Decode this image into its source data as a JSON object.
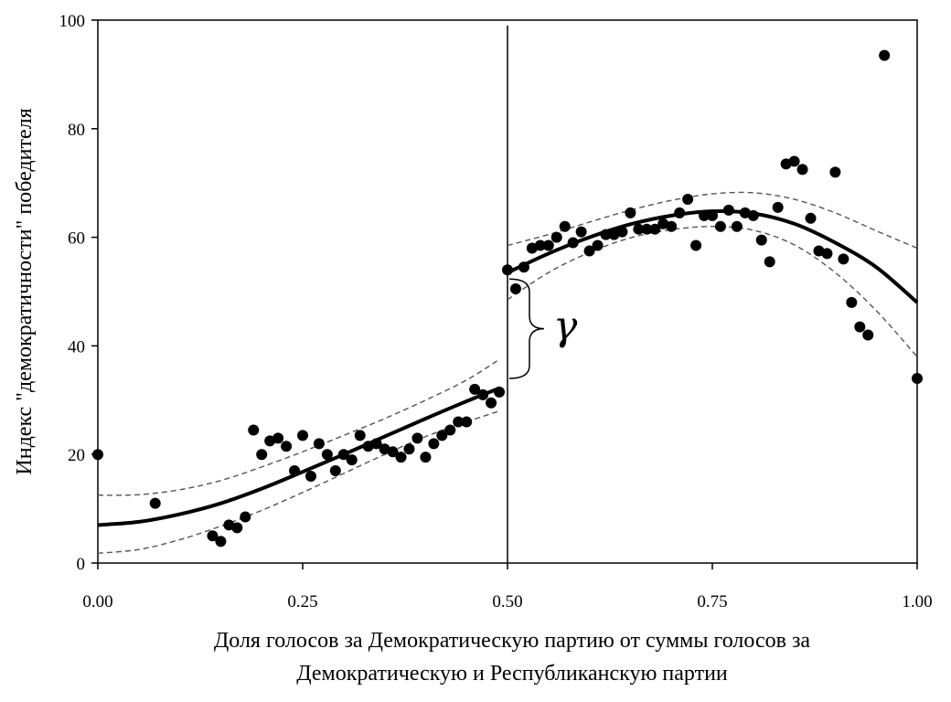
{
  "chart_data": {
    "type": "scatter",
    "title": "",
    "xlabel_lines": [
      "Доля голосов за Демократическую партию от суммы голосов за",
      "Демократическую и Республиканскую партии"
    ],
    "ylabel": "Индекс \"демократичности\" победителя",
    "xlim": [
      0,
      1
    ],
    "ylim": [
      0,
      100
    ],
    "xticks": [
      "0.00",
      "0.25",
      "0.50",
      "0.75",
      "1.00"
    ],
    "yticks": [
      "0",
      "20",
      "40",
      "60",
      "80",
      "100"
    ],
    "grid": false,
    "discontinuity_x": 0.5,
    "annotation": "γ",
    "gap": [
      34,
      54
    ],
    "points": [
      [
        0.0,
        20
      ],
      [
        0.07,
        11
      ],
      [
        0.14,
        5
      ],
      [
        0.15,
        4
      ],
      [
        0.16,
        7
      ],
      [
        0.17,
        6.5
      ],
      [
        0.18,
        8.5
      ],
      [
        0.19,
        24.5
      ],
      [
        0.2,
        20
      ],
      [
        0.21,
        22.5
      ],
      [
        0.22,
        23
      ],
      [
        0.23,
        21.5
      ],
      [
        0.24,
        17
      ],
      [
        0.25,
        23.5
      ],
      [
        0.26,
        16
      ],
      [
        0.27,
        22
      ],
      [
        0.28,
        20
      ],
      [
        0.29,
        17
      ],
      [
        0.3,
        20
      ],
      [
        0.31,
        19
      ],
      [
        0.32,
        23.5
      ],
      [
        0.33,
        21.5
      ],
      [
        0.34,
        22
      ],
      [
        0.35,
        21
      ],
      [
        0.36,
        20.5
      ],
      [
        0.37,
        19.5
      ],
      [
        0.38,
        21
      ],
      [
        0.39,
        23
      ],
      [
        0.4,
        19.5
      ],
      [
        0.41,
        22
      ],
      [
        0.42,
        23.5
      ],
      [
        0.43,
        24.5
      ],
      [
        0.44,
        26
      ],
      [
        0.45,
        26
      ],
      [
        0.46,
        32
      ],
      [
        0.47,
        31
      ],
      [
        0.48,
        29.5
      ],
      [
        0.49,
        31.5
      ],
      [
        0.5,
        54
      ],
      [
        0.51,
        50.5
      ],
      [
        0.52,
        54.5
      ],
      [
        0.53,
        58
      ],
      [
        0.54,
        58.5
      ],
      [
        0.55,
        58.5
      ],
      [
        0.56,
        60
      ],
      [
        0.57,
        62
      ],
      [
        0.58,
        59
      ],
      [
        0.59,
        61
      ],
      [
        0.6,
        57.5
      ],
      [
        0.61,
        58.5
      ],
      [
        0.62,
        60.5
      ],
      [
        0.63,
        60.5
      ],
      [
        0.64,
        61
      ],
      [
        0.65,
        64.5
      ],
      [
        0.66,
        61.5
      ],
      [
        0.67,
        61.5
      ],
      [
        0.68,
        61.5
      ],
      [
        0.69,
        62.5
      ],
      [
        0.7,
        62
      ],
      [
        0.71,
        64.5
      ],
      [
        0.72,
        67
      ],
      [
        0.73,
        58.5
      ],
      [
        0.74,
        64
      ],
      [
        0.75,
        64
      ],
      [
        0.76,
        62
      ],
      [
        0.77,
        65
      ],
      [
        0.78,
        62
      ],
      [
        0.79,
        64.5
      ],
      [
        0.8,
        64
      ],
      [
        0.81,
        59.5
      ],
      [
        0.82,
        55.5
      ],
      [
        0.83,
        65.5
      ],
      [
        0.84,
        73.5
      ],
      [
        0.85,
        74
      ],
      [
        0.86,
        72.5
      ],
      [
        0.87,
        63.5
      ],
      [
        0.88,
        57.5
      ],
      [
        0.89,
        57
      ],
      [
        0.9,
        72
      ],
      [
        0.91,
        56
      ],
      [
        0.92,
        48
      ],
      [
        0.93,
        43.5
      ],
      [
        0.94,
        42
      ],
      [
        0.96,
        93.5
      ],
      [
        1.0,
        34
      ]
    ],
    "fit_left": {
      "x": [
        0,
        0.05,
        0.1,
        0.15,
        0.2,
        0.25,
        0.3,
        0.35,
        0.4,
        0.45,
        0.49
      ],
      "y": [
        7,
        7.6,
        9,
        11,
        13.7,
        16.8,
        20,
        23.3,
        26.6,
        29.8,
        32.2
      ]
    },
    "upper_left": {
      "x": [
        0,
        0.05,
        0.1,
        0.15,
        0.2,
        0.25,
        0.3,
        0.35,
        0.4,
        0.45,
        0.49
      ],
      "y": [
        12.5,
        12.6,
        13.5,
        15.2,
        17.7,
        20.5,
        23.5,
        26.6,
        30,
        33.7,
        37.5
      ]
    },
    "lower_left": {
      "x": [
        0,
        0.05,
        0.1,
        0.15,
        0.2,
        0.25,
        0.3,
        0.35,
        0.4,
        0.45,
        0.49
      ],
      "y": [
        1.8,
        2.5,
        4.3,
        6.8,
        9.7,
        13,
        16.5,
        20,
        23.3,
        26,
        28
      ]
    },
    "fit_right": {
      "x": [
        0.5,
        0.55,
        0.6,
        0.65,
        0.7,
        0.75,
        0.8,
        0.85,
        0.9,
        0.95,
        1.0
      ],
      "y": [
        53.5,
        57,
        60,
        62.4,
        64,
        64.8,
        64.4,
        62.5,
        59,
        54.5,
        48
      ]
    },
    "upper_right": {
      "x": [
        0.5,
        0.55,
        0.6,
        0.65,
        0.7,
        0.75,
        0.8,
        0.85,
        0.9,
        0.95,
        1.0
      ],
      "y": [
        58.5,
        60.5,
        62.8,
        65,
        66.8,
        68,
        68.2,
        67,
        64.5,
        61.2,
        58
      ]
    },
    "lower_right": {
      "x": [
        0.5,
        0.55,
        0.6,
        0.65,
        0.7,
        0.75,
        0.8,
        0.85,
        0.9,
        0.95,
        1.0
      ],
      "y": [
        48.5,
        53.5,
        57.2,
        59.9,
        61.4,
        62,
        61.3,
        58.6,
        53.5,
        46.5,
        38
      ]
    }
  }
}
